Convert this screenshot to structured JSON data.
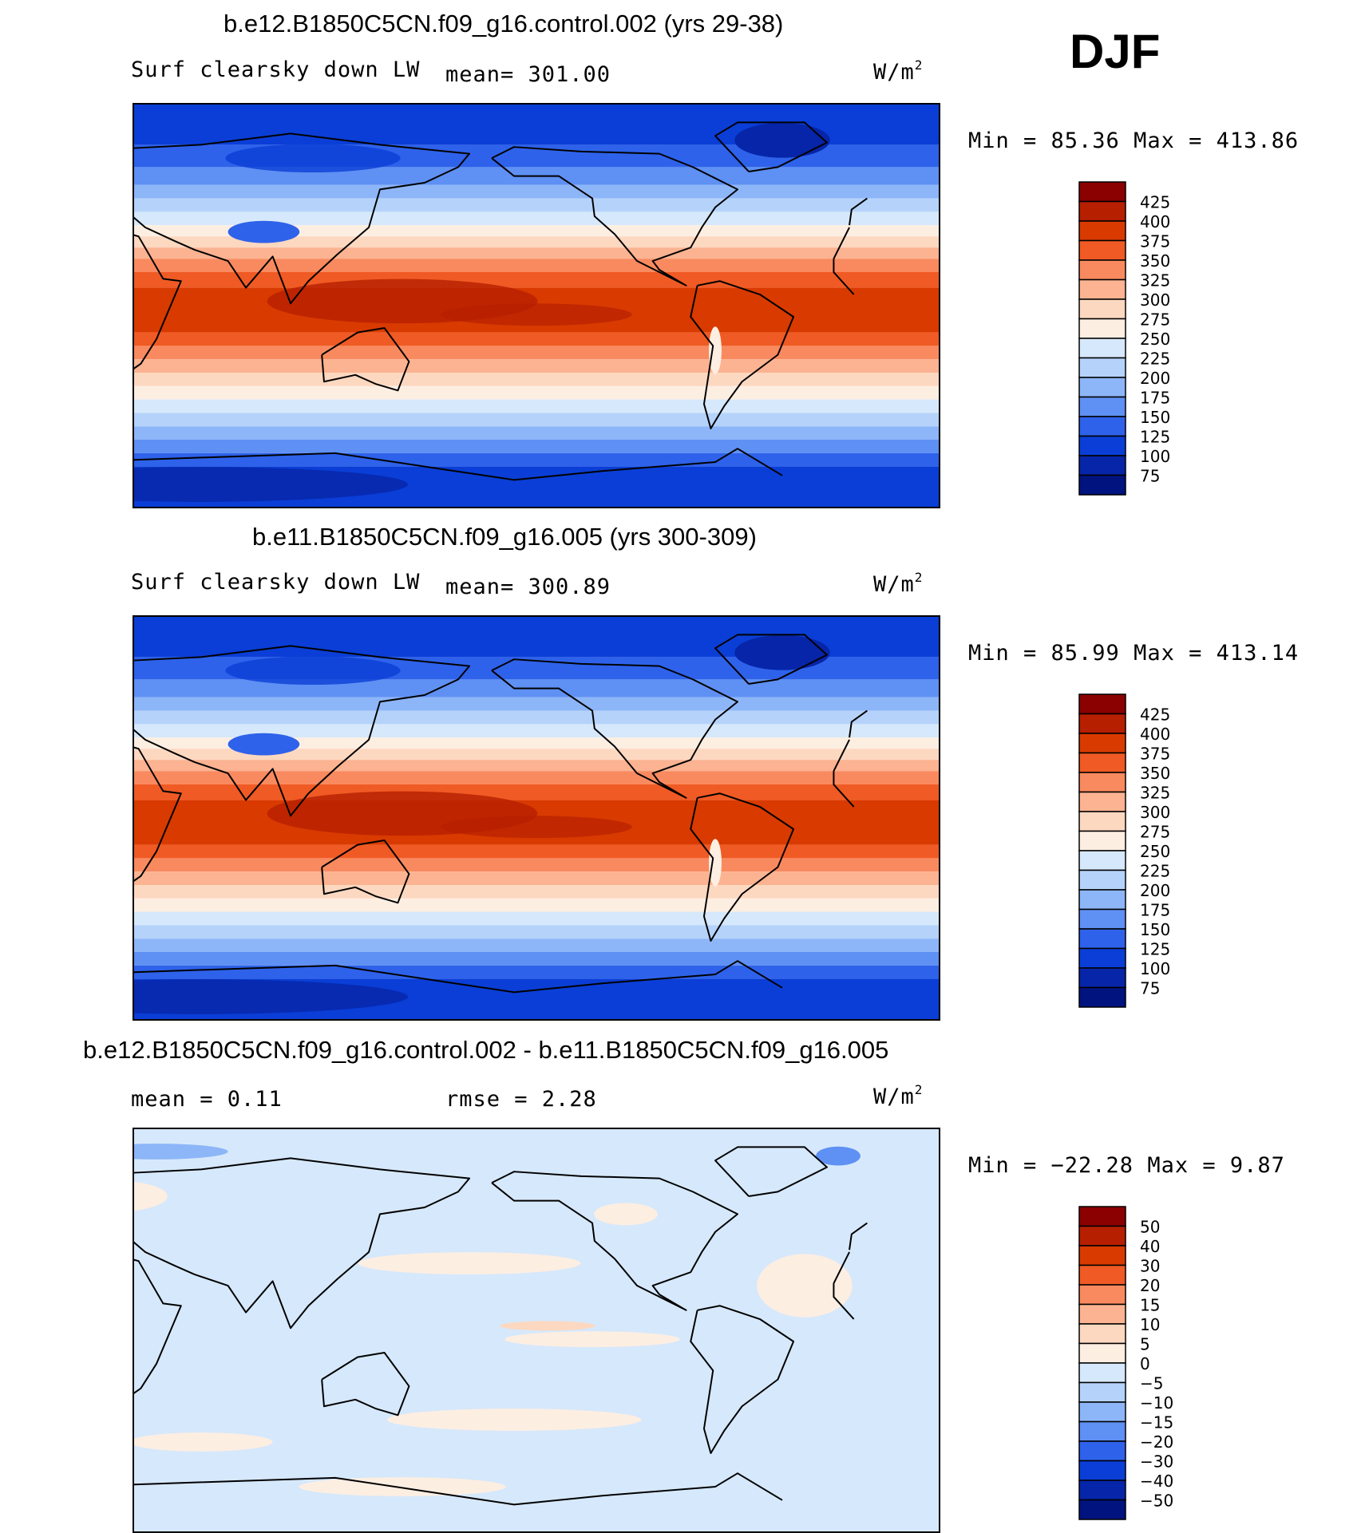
{
  "season": "DJF",
  "panels": [
    {
      "title": "b.e12.B1850C5CN.f09_g16.control.002 (yrs 29-38)",
      "variable": "Surf clearsky down LW",
      "stat": "mean=  301.00",
      "units_base": "W/m",
      "units_exp": "2",
      "minmax": "Min =   85.36 Max = 413.86",
      "field": "absolute"
    },
    {
      "title": "b.e11.B1850C5CN.f09_g16.005 (yrs 300-309)",
      "variable": "Surf clearsky down LW",
      "stat": "mean=  300.89",
      "units_base": "W/m",
      "units_exp": "2",
      "minmax": "Min =   85.99 Max = 413.14",
      "field": "absolute"
    },
    {
      "title": "b.e12.B1850C5CN.f09_g16.control.002 - b.e11.B1850C5CN.f09_g16.005",
      "stat_left": "mean =    0.11",
      "stat_right": "rmse =    2.28",
      "units_base": "W/m",
      "units_exp": "2",
      "minmax": "Min = −22.28 Max =    9.87",
      "field": "difference"
    }
  ],
  "chart_data": [
    {
      "type": "heatmap",
      "title": "b.e12.B1850C5CN.f09_g16.control.002 (yrs 29-38)",
      "variable": "Surf clearsky down LW",
      "units": "W/m2",
      "mean": 301.0,
      "min": 85.36,
      "max": 413.86,
      "colorbar_levels": [
        425,
        400,
        375,
        350,
        325,
        300,
        275,
        250,
        225,
        200,
        175,
        150,
        125,
        100,
        75
      ],
      "colorbar_colors": [
        "#8b0000",
        "#b61f00",
        "#d93a00",
        "#f05a24",
        "#f98a5f",
        "#fbb391",
        "#fdd8c0",
        "#fdeee2",
        "#d6e8fb",
        "#b5d3fa",
        "#8db6f8",
        "#5f90f3",
        "#2e62ea",
        "#0a3ed6",
        "#0625a8",
        "#00137e"
      ]
    },
    {
      "type": "heatmap",
      "title": "b.e11.B1850C5CN.f09_g16.005 (yrs 300-309)",
      "variable": "Surf clearsky down LW",
      "units": "W/m2",
      "mean": 300.89,
      "min": 85.99,
      "max": 413.14,
      "colorbar_levels": [
        425,
        400,
        375,
        350,
        325,
        300,
        275,
        250,
        225,
        200,
        175,
        150,
        125,
        100,
        75
      ],
      "colorbar_colors": [
        "#8b0000",
        "#b61f00",
        "#d93a00",
        "#f05a24",
        "#f98a5f",
        "#fbb391",
        "#fdd8c0",
        "#fdeee2",
        "#d6e8fb",
        "#b5d3fa",
        "#8db6f8",
        "#5f90f3",
        "#2e62ea",
        "#0a3ed6",
        "#0625a8",
        "#00137e"
      ]
    },
    {
      "type": "heatmap",
      "title": "b.e12.B1850C5CN.f09_g16.control.002 - b.e11.B1850C5CN.f09_g16.005",
      "units": "W/m2",
      "mean": 0.11,
      "rmse": 2.28,
      "min": -22.28,
      "max": 9.87,
      "colorbar_levels": [
        "50",
        "40",
        "30",
        "20",
        "15",
        "10",
        "5",
        "0",
        "−5",
        "−10",
        "−15",
        "−20",
        "−30",
        "−40",
        "−50"
      ],
      "colorbar_colors": [
        "#8b0000",
        "#b61f00",
        "#d93a00",
        "#f05a24",
        "#f98a5f",
        "#fbb391",
        "#fdd8c0",
        "#fdeee2",
        "#d6e8fb",
        "#b5d3fa",
        "#8db6f8",
        "#5f90f3",
        "#2e62ea",
        "#0a3ed6",
        "#0625a8",
        "#00137e"
      ]
    }
  ]
}
